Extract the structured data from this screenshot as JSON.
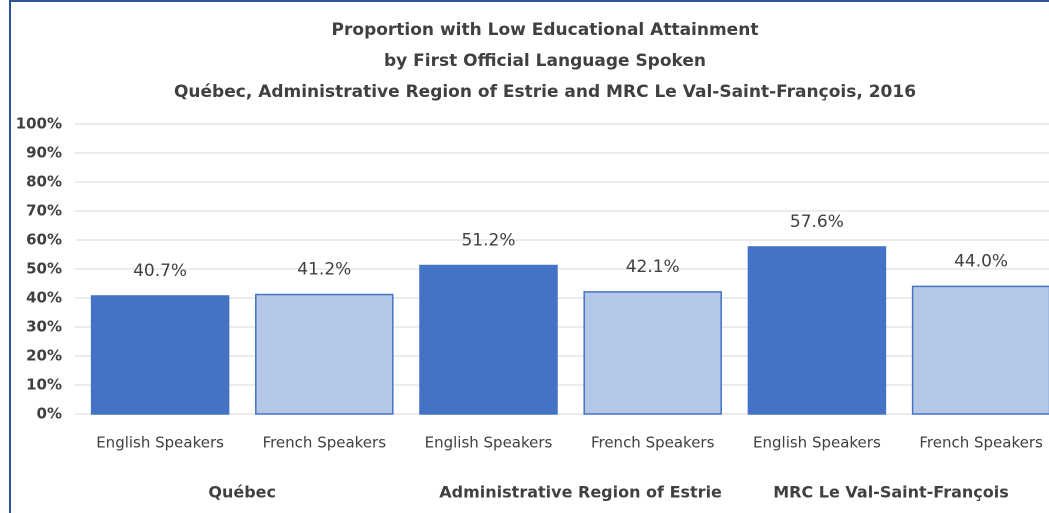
{
  "chart_data": {
    "type": "bar",
    "title": [
      "Proportion with Low Educational Attainment",
      "by First Official Language Spoken",
      "Québec, Administrative Region of Estrie and MRC Le Val-Saint-François,  2016"
    ],
    "categories": [
      "English Speakers",
      "French Speakers",
      "English Speakers",
      "French Speakers",
      "English Speakers",
      "French Speakers"
    ],
    "groups": [
      "Québec",
      "Administrative Region of Estrie",
      "MRC Le Val-Saint-François"
    ],
    "values": [
      40.7,
      41.2,
      51.2,
      42.1,
      57.6,
      44.0
    ],
    "value_labels": [
      "40.7%",
      "41.2%",
      "51.2%",
      "42.1%",
      "57.6%",
      "44.0%"
    ],
    "colors": [
      "#4472c4",
      "#b4c7e7",
      "#4472c4",
      "#b4c7e7",
      "#4472c4",
      "#b4c7e7"
    ],
    "ylim": [
      0,
      100
    ],
    "yticks": [
      {
        "value": 0,
        "label": "0%"
      },
      {
        "value": 10,
        "label": "10%"
      },
      {
        "value": 20,
        "label": "20%"
      },
      {
        "value": 30,
        "label": "30%"
      },
      {
        "value": 40,
        "label": "40%"
      },
      {
        "value": 50,
        "label": "50%"
      },
      {
        "value": 60,
        "label": "60%"
      },
      {
        "value": 70,
        "label": "70%"
      },
      {
        "value": 80,
        "label": "80%"
      },
      {
        "value": 90,
        "label": "90%"
      },
      {
        "value": 100,
        "label": "100%"
      }
    ],
    "grid": true
  }
}
